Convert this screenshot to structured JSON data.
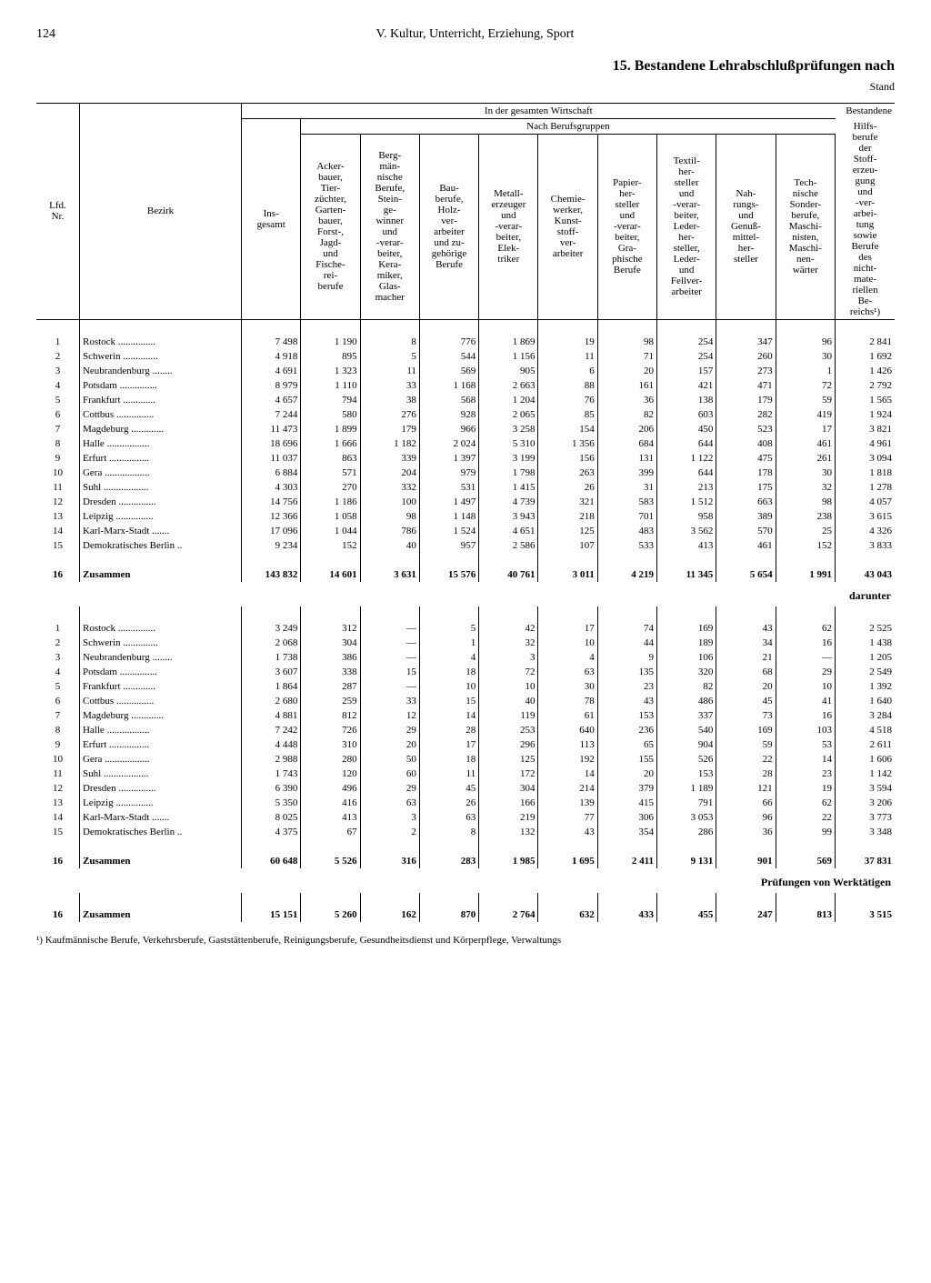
{
  "page_number": "124",
  "running_head": "V. Kultur, Unterricht, Erziehung, Sport",
  "title": "15. Bestandene Lehrabschlußprüfungen nach",
  "stand": "Stand",
  "header": {
    "lfd": "Lfd.\nNr.",
    "bezirk": "Bezirk",
    "insgesamt": "Ins-\ngesamt",
    "span_top": "In der gesamten Wirtschaft",
    "span_sub": "Nach Berufsgruppen",
    "right_top": "Bestandene",
    "cols": [
      "Acker-\nbauer,\nTier-\nzüchter,\nGarten-\nbauer,\nForst-,\nJagd-\nund\nFische-\nrei-\nberufe",
      "Berg-\nmän-\nnische\nBerufe,\nStein-\nge-\nwinner\nund\n-verar-\nbeiter,\nKera-\nmiker,\nGlas-\nmacher",
      "Bau-\nberufe,\nHolz-\nver-\narbeiter\nund zu-\ngehörige\nBerufe",
      "Metall-\nerzeuger\nund\n-verar-\nbeiter,\nElek-\ntriker",
      "Chemie-\nwerker,\nKunst-\nstoff-\nver-\narbeiter",
      "Papier-\nher-\nsteller\nund\n-verar-\nbeiter,\nGra-\nphische\nBerufe",
      "Textil-\nher-\nsteller\nund\n-verar-\nbeiter,\nLeder-\nher-\nsteller,\nLeder-\nund\nFellver-\narbeiter",
      "Nah-\nrungs-\nund\nGenuß-\nmittel-\nher-\nsteller",
      "Tech-\nnische\nSonder-\nberufe,\nMaschi-\nnisten,\nMaschi-\nnen-\nwärter",
      "Hilfs-\nberufe\nder\nStoff-\nerzeu-\ngung\nund\n-ver-\narbei-\ntung\nsowie\nBerufe\ndes\nnicht-\nmate-\nriellen\nBe-\nreichs¹)"
    ]
  },
  "section1_label": "",
  "section2_label": "darunter",
  "section3_label": "Prüfungen von Werktätigen",
  "zusammen": "Zusammen",
  "rows1": [
    {
      "n": "1",
      "b": "Rostock",
      "v": [
        "7 498",
        "1 190",
        "8",
        "776",
        "1 869",
        "19",
        "98",
        "254",
        "347",
        "96",
        "2 841"
      ]
    },
    {
      "n": "2",
      "b": "Schwerin",
      "v": [
        "4 918",
        "895",
        "5",
        "544",
        "1 156",
        "11",
        "71",
        "254",
        "260",
        "30",
        "1 692"
      ]
    },
    {
      "n": "3",
      "b": "Neubrandenburg",
      "v": [
        "4 691",
        "1 323",
        "11",
        "569",
        "905",
        "6",
        "20",
        "157",
        "273",
        "1",
        "1 426"
      ]
    },
    {
      "n": "4",
      "b": "Potsdam",
      "v": [
        "8 979",
        "1 110",
        "33",
        "1 168",
        "2 663",
        "88",
        "161",
        "421",
        "471",
        "72",
        "2 792"
      ]
    },
    {
      "n": "5",
      "b": "Frankfurt",
      "v": [
        "4 657",
        "794",
        "38",
        "568",
        "1 204",
        "76",
        "36",
        "138",
        "179",
        "59",
        "1 565"
      ]
    },
    {
      "n": "6",
      "b": "Cottbus",
      "v": [
        "7 244",
        "580",
        "276",
        "928",
        "2 065",
        "85",
        "82",
        "603",
        "282",
        "419",
        "1 924"
      ]
    },
    {
      "n": "7",
      "b": "Magdeburg",
      "v": [
        "11 473",
        "1 899",
        "179",
        "966",
        "3 258",
        "154",
        "206",
        "450",
        "523",
        "17",
        "3 821"
      ]
    },
    {
      "n": "8",
      "b": "Halle",
      "v": [
        "18 696",
        "1 666",
        "1 182",
        "2 024",
        "5 310",
        "1 356",
        "684",
        "644",
        "408",
        "461",
        "4 961"
      ]
    },
    {
      "n": "9",
      "b": "Erfurt",
      "v": [
        "11 037",
        "863",
        "339",
        "1 397",
        "3 199",
        "156",
        "131",
        "1 122",
        "475",
        "261",
        "3 094"
      ]
    },
    {
      "n": "10",
      "b": "Gera",
      "v": [
        "6 884",
        "571",
        "204",
        "979",
        "1 798",
        "263",
        "399",
        "644",
        "178",
        "30",
        "1 818"
      ]
    },
    {
      "n": "11",
      "b": "Suhl",
      "v": [
        "4 303",
        "270",
        "332",
        "531",
        "1 415",
        "26",
        "31",
        "213",
        "175",
        "32",
        "1 278"
      ]
    },
    {
      "n": "12",
      "b": "Dresden",
      "v": [
        "14 756",
        "1 186",
        "100",
        "1 497",
        "4 739",
        "321",
        "583",
        "1 512",
        "663",
        "98",
        "4 057"
      ]
    },
    {
      "n": "13",
      "b": "Leipzig",
      "v": [
        "12 366",
        "1 058",
        "98",
        "1 148",
        "3 943",
        "218",
        "701",
        "958",
        "389",
        "238",
        "3 615"
      ]
    },
    {
      "n": "14",
      "b": "Karl-Marx-Stadt",
      "v": [
        "17 096",
        "1 044",
        "786",
        "1 524",
        "4 651",
        "125",
        "483",
        "3 562",
        "570",
        "25",
        "4 326"
      ]
    },
    {
      "n": "15",
      "b": "Demokratisches Berlin",
      "v": [
        "9 234",
        "152",
        "40",
        "957",
        "2 586",
        "107",
        "533",
        "413",
        "461",
        "152",
        "3 833"
      ]
    }
  ],
  "total1": {
    "n": "16",
    "b": "Zusammen",
    "v": [
      "143 832",
      "14 601",
      "3 631",
      "15 576",
      "40 761",
      "3 011",
      "4 219",
      "11 345",
      "5 654",
      "1 991",
      "43 043"
    ]
  },
  "rows2": [
    {
      "n": "1",
      "b": "Rostock",
      "v": [
        "3 249",
        "312",
        "—",
        "5",
        "42",
        "17",
        "74",
        "169",
        "43",
        "62",
        "2 525"
      ]
    },
    {
      "n": "2",
      "b": "Schwerin",
      "v": [
        "2 068",
        "304",
        "—",
        "1",
        "32",
        "10",
        "44",
        "189",
        "34",
        "16",
        "1 438"
      ]
    },
    {
      "n": "3",
      "b": "Neubrandenburg",
      "v": [
        "1 738",
        "386",
        "—",
        "4",
        "3",
        "4",
        "9",
        "106",
        "21",
        "—",
        "1 205"
      ]
    },
    {
      "n": "4",
      "b": "Potsdam",
      "v": [
        "3 607",
        "338",
        "15",
        "18",
        "72",
        "63",
        "135",
        "320",
        "68",
        "29",
        "2 549"
      ]
    },
    {
      "n": "5",
      "b": "Frankfurt",
      "v": [
        "1 864",
        "287",
        "—",
        "10",
        "10",
        "30",
        "23",
        "82",
        "20",
        "10",
        "1 392"
      ]
    },
    {
      "n": "6",
      "b": "Cottbus",
      "v": [
        "2 680",
        "259",
        "33",
        "15",
        "40",
        "78",
        "43",
        "486",
        "45",
        "41",
        "1 640"
      ]
    },
    {
      "n": "7",
      "b": "Magdeburg",
      "v": [
        "4 881",
        "812",
        "12",
        "14",
        "119",
        "61",
        "153",
        "337",
        "73",
        "16",
        "3 284"
      ]
    },
    {
      "n": "8",
      "b": "Halle",
      "v": [
        "7 242",
        "726",
        "29",
        "28",
        "253",
        "640",
        "236",
        "540",
        "169",
        "103",
        "4 518"
      ]
    },
    {
      "n": "9",
      "b": "Erfurt",
      "v": [
        "4 448",
        "310",
        "20",
        "17",
        "296",
        "113",
        "65",
        "904",
        "59",
        "53",
        "2 611"
      ]
    },
    {
      "n": "10",
      "b": "Gera",
      "v": [
        "2 988",
        "280",
        "50",
        "18",
        "125",
        "192",
        "155",
        "526",
        "22",
        "14",
        "1 606"
      ]
    },
    {
      "n": "11",
      "b": "Suhl",
      "v": [
        "1 743",
        "120",
        "60",
        "11",
        "172",
        "14",
        "20",
        "153",
        "28",
        "23",
        "1 142"
      ]
    },
    {
      "n": "12",
      "b": "Dresden",
      "v": [
        "6 390",
        "496",
        "29",
        "45",
        "304",
        "214",
        "379",
        "1 189",
        "121",
        "19",
        "3 594"
      ]
    },
    {
      "n": "13",
      "b": "Leipzig",
      "v": [
        "5 350",
        "416",
        "63",
        "26",
        "166",
        "139",
        "415",
        "791",
        "66",
        "62",
        "3 206"
      ]
    },
    {
      "n": "14",
      "b": "Karl-Marx-Stadt",
      "v": [
        "8 025",
        "413",
        "3",
        "63",
        "219",
        "77",
        "306",
        "3 053",
        "96",
        "22",
        "3 773"
      ]
    },
    {
      "n": "15",
      "b": "Demokratisches Berlin",
      "v": [
        "4 375",
        "67",
        "2",
        "8",
        "132",
        "43",
        "354",
        "286",
        "36",
        "99",
        "3 348"
      ]
    }
  ],
  "total2": {
    "n": "16",
    "b": "Zusammen",
    "v": [
      "60 648",
      "5 526",
      "316",
      "283",
      "1 985",
      "1 695",
      "2 411",
      "9 131",
      "901",
      "569",
      "37 831"
    ]
  },
  "total3": {
    "n": "16",
    "b": "Zusammen",
    "v": [
      "15 151",
      "5 260",
      "162",
      "870",
      "2 764",
      "632",
      "433",
      "455",
      "247",
      "813",
      "3 515"
    ]
  },
  "footnote": "¹) Kaufmännische Berufe, Verkehrsberufe, Gaststättenberufe, Reinigungsberufe, Gesundheitsdienst und Körperpflege, Verwaltungs"
}
